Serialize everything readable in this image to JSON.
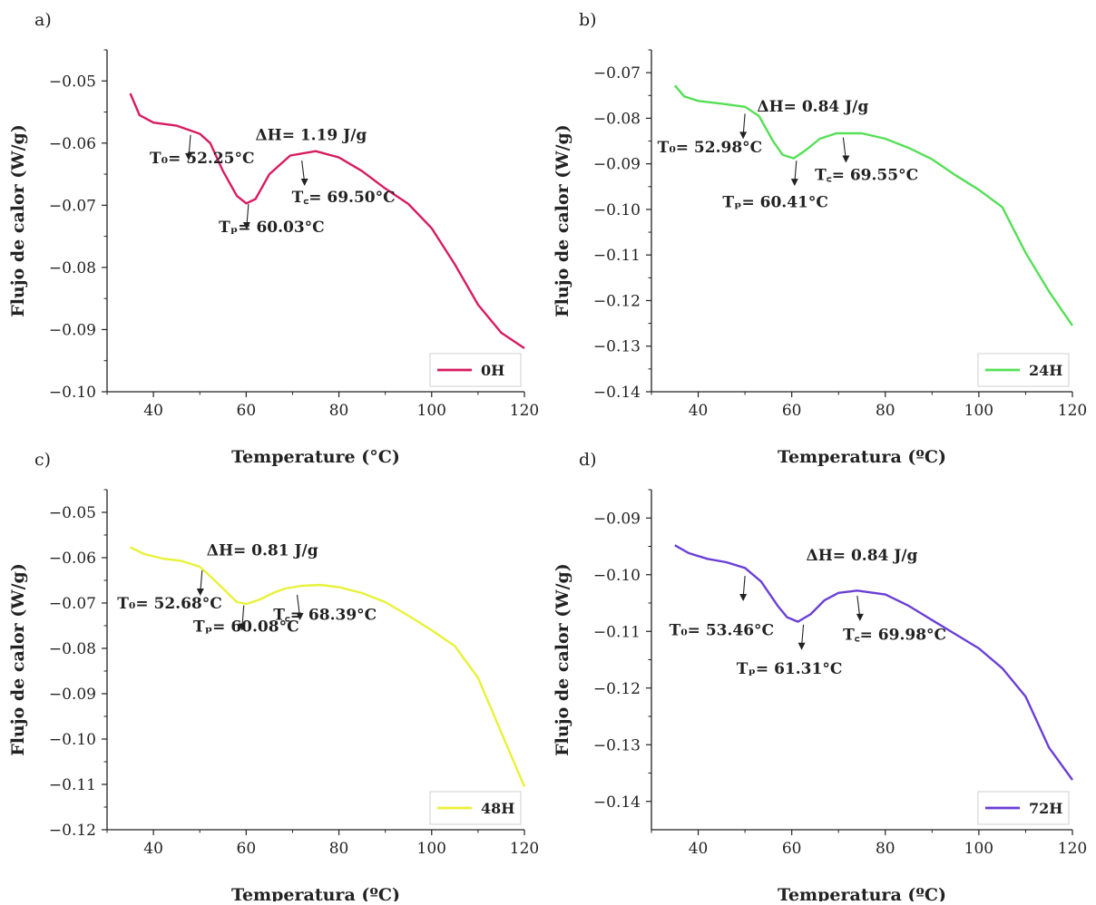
{
  "chart_data": [
    {
      "panel": "a)",
      "type": "line",
      "xlabel": "Temperature (°C)",
      "ylabel": "Flujo de calor (W/g)",
      "xlim": [
        30,
        120
      ],
      "ylim": [
        -0.1,
        -0.045
      ],
      "x_ticks": [
        40,
        60,
        80,
        100,
        120
      ],
      "x_tick_labels": [
        "40",
        "60",
        "80",
        "100",
        "120"
      ],
      "y_ticks": [
        -0.05,
        -0.06,
        -0.07,
        -0.08,
        -0.09,
        -0.1
      ],
      "y_tick_labels": [
        "−0.05",
        "−0.06",
        "−0.07",
        "−0.08",
        "−0.09",
        "−0.10"
      ],
      "series": [
        {
          "name": "0H",
          "color": "#d81b60",
          "x": [
            35,
            37,
            40,
            45,
            50,
            52.25,
            55,
            58,
            60.03,
            62,
            65,
            69.5,
            75,
            80,
            85,
            90,
            95,
            100,
            105,
            110,
            115,
            120
          ],
          "y": [
            -0.052,
            -0.0555,
            -0.0567,
            -0.0572,
            -0.0585,
            -0.06,
            -0.0645,
            -0.0685,
            -0.0697,
            -0.069,
            -0.065,
            -0.062,
            -0.0613,
            -0.0623,
            -0.0645,
            -0.0673,
            -0.0698,
            -0.0737,
            -0.0795,
            -0.086,
            -0.0905,
            -0.093
          ]
        }
      ],
      "legend_position": "bottom-right",
      "annotations": [
        {
          "id": "dh",
          "text": "ΔH= 1.19 J/g",
          "x": 74,
          "y": -0.0595,
          "arrow": false
        },
        {
          "id": "t0",
          "text": "T₀= 52.25°C",
          "x": 50.5,
          "y": -0.0632,
          "arrow_to": [
            48,
            -0.0587
          ]
        },
        {
          "id": "tp",
          "text": "Tₚ= 60.03°C",
          "x": 65.5,
          "y": -0.0743,
          "arrow_to": [
            60.5,
            -0.0698
          ]
        },
        {
          "id": "tc",
          "text": "T꜀= 69.50°C",
          "x": 81,
          "y": -0.0695,
          "arrow_to": [
            72,
            -0.0628
          ]
        }
      ]
    },
    {
      "panel": "b)",
      "type": "line",
      "xlabel": "Temperatura (ºC)",
      "ylabel": "Flujo de calor (W/g)",
      "xlim": [
        30,
        120
      ],
      "ylim": [
        -0.14,
        -0.065
      ],
      "x_ticks": [
        40,
        60,
        80,
        100,
        120
      ],
      "x_tick_labels": [
        "40",
        "60",
        "80",
        "100",
        "120"
      ],
      "y_ticks": [
        -0.07,
        -0.08,
        -0.09,
        -0.1,
        -0.11,
        -0.12,
        -0.13,
        -0.14
      ],
      "y_tick_labels": [
        "−0.07",
        "−0.08",
        "−0.09",
        "−0.10",
        "−0.11",
        "−0.12",
        "−0.13",
        "−0.14"
      ],
      "series": [
        {
          "name": "24H",
          "color": "#55e055",
          "x": [
            35,
            37,
            40,
            45,
            50,
            52.98,
            56,
            58,
            60.41,
            63,
            66,
            69.55,
            75,
            80,
            85,
            90,
            95,
            100,
            105,
            110,
            115,
            120
          ],
          "y": [
            -0.0728,
            -0.0752,
            -0.0762,
            -0.0768,
            -0.0775,
            -0.0795,
            -0.085,
            -0.088,
            -0.0888,
            -0.087,
            -0.0845,
            -0.0833,
            -0.0833,
            -0.0845,
            -0.0865,
            -0.089,
            -0.0925,
            -0.0957,
            -0.0995,
            -0.1095,
            -0.118,
            -0.1255
          ]
        }
      ],
      "legend_position": "bottom-right",
      "annotations": [
        {
          "id": "dh",
          "text": "ΔH= 0.84 J/g",
          "x": 64.5,
          "y": -0.0785,
          "arrow": false
        },
        {
          "id": "t0",
          "text": "T₀= 52.98°C",
          "x": 42.5,
          "y": -0.0875,
          "arrow_to": [
            50,
            -0.079
          ]
        },
        {
          "id": "tp",
          "text": "Tₚ= 60.41°C",
          "x": 56.5,
          "y": -0.0995,
          "arrow_to": [
            61,
            -0.0893
          ]
        },
        {
          "id": "tc",
          "text": "T꜀= 69.55°C",
          "x": 76,
          "y": -0.0935,
          "arrow_to": [
            71,
            -0.0842
          ]
        }
      ]
    },
    {
      "panel": "c)",
      "type": "line",
      "xlabel": "Temperatura (ºC)",
      "ylabel": "Flujo de calor (W/g)",
      "xlim": [
        30,
        120
      ],
      "ylim": [
        -0.12,
        -0.045
      ],
      "x_ticks": [
        40,
        60,
        80,
        100,
        120
      ],
      "x_tick_labels": [
        "40",
        "60",
        "80",
        "100",
        "120"
      ],
      "y_ticks": [
        -0.05,
        -0.06,
        -0.07,
        -0.08,
        -0.09,
        -0.1,
        -0.11,
        -0.12
      ],
      "y_tick_labels": [
        "−0.05",
        "−0.06",
        "−0.07",
        "−0.08",
        "−0.09",
        "−0.10",
        "−0.11",
        "−0.12"
      ],
      "series": [
        {
          "name": "48H",
          "color": "#e8f23a",
          "x": [
            35,
            38,
            42,
            46,
            50,
            52.68,
            56,
            58,
            60.08,
            63,
            66,
            68.39,
            72,
            76,
            80,
            85,
            90,
            95,
            100,
            105,
            110,
            115,
            120
          ],
          "y": [
            -0.0577,
            -0.0592,
            -0.0602,
            -0.0607,
            -0.062,
            -0.0645,
            -0.0678,
            -0.0698,
            -0.0702,
            -0.0692,
            -0.0677,
            -0.0668,
            -0.0662,
            -0.066,
            -0.0665,
            -0.0678,
            -0.0698,
            -0.0728,
            -0.076,
            -0.0795,
            -0.0865,
            -0.0985,
            -0.1105
          ]
        }
      ],
      "legend_position": "bottom-right",
      "annotations": [
        {
          "id": "dh",
          "text": "ΔH= 0.81 J/g",
          "x": 63.5,
          "y": -0.0595,
          "arrow": false
        },
        {
          "id": "t0",
          "text": "T₀= 52.68°C",
          "x": 43.5,
          "y": -0.0712,
          "arrow_to": [
            50.5,
            -0.0628
          ]
        },
        {
          "id": "tp",
          "text": "Tₚ= 60.08°C",
          "x": 60,
          "y": -0.0763,
          "arrow_to": [
            59.5,
            -0.0705
          ]
        },
        {
          "id": "tc",
          "text": "T꜀= 68.39°C",
          "x": 77,
          "y": -0.0737,
          "arrow_to": [
            71,
            -0.0682
          ]
        }
      ]
    },
    {
      "panel": "d)",
      "type": "line",
      "xlabel": "Temperatura (ºC)",
      "ylabel": "Flujo de calor (W/g)",
      "xlim": [
        30,
        120
      ],
      "ylim": [
        -0.145,
        -0.085
      ],
      "x_ticks": [
        40,
        60,
        80,
        100,
        120
      ],
      "x_tick_labels": [
        "40",
        "60",
        "80",
        "100",
        "120"
      ],
      "y_ticks": [
        -0.09,
        -0.1,
        -0.11,
        -0.12,
        -0.13,
        -0.14
      ],
      "y_tick_labels": [
        "−0.09",
        "−0.10",
        "−0.11",
        "−0.12",
        "−0.13",
        "−0.14"
      ],
      "series": [
        {
          "name": "72H",
          "color": "#6a3fd6",
          "x": [
            35,
            38,
            42,
            46,
            50,
            53.46,
            57,
            59,
            61.31,
            64,
            67,
            69.98,
            74,
            80,
            85,
            90,
            95,
            100,
            105,
            110,
            115,
            120
          ],
          "y": [
            -0.0948,
            -0.0962,
            -0.0972,
            -0.0978,
            -0.0988,
            -0.1012,
            -0.1055,
            -0.1075,
            -0.1083,
            -0.107,
            -0.1045,
            -0.1032,
            -0.1028,
            -0.1035,
            -0.1055,
            -0.108,
            -0.1105,
            -0.113,
            -0.1165,
            -0.1215,
            -0.1305,
            -0.1362
          ]
        }
      ],
      "legend_position": "bottom-right",
      "annotations": [
        {
          "id": "dh",
          "text": "ΔH= 0.84 J/g",
          "x": 75,
          "y": -0.0975,
          "arrow": false
        },
        {
          "id": "t0",
          "text": "T₀= 53.46°C",
          "x": 45,
          "y": -0.1107,
          "arrow_to": [
            50,
            -0.1002
          ]
        },
        {
          "id": "tp",
          "text": "Tₚ= 61.31°C",
          "x": 59.5,
          "y": -0.1175,
          "arrow_to": [
            62.5,
            -0.1088
          ]
        },
        {
          "id": "tc",
          "text": "T꜀= 69.98°C",
          "x": 82,
          "y": -0.1115,
          "arrow_to": [
            74,
            -0.1037
          ]
        }
      ]
    }
  ]
}
